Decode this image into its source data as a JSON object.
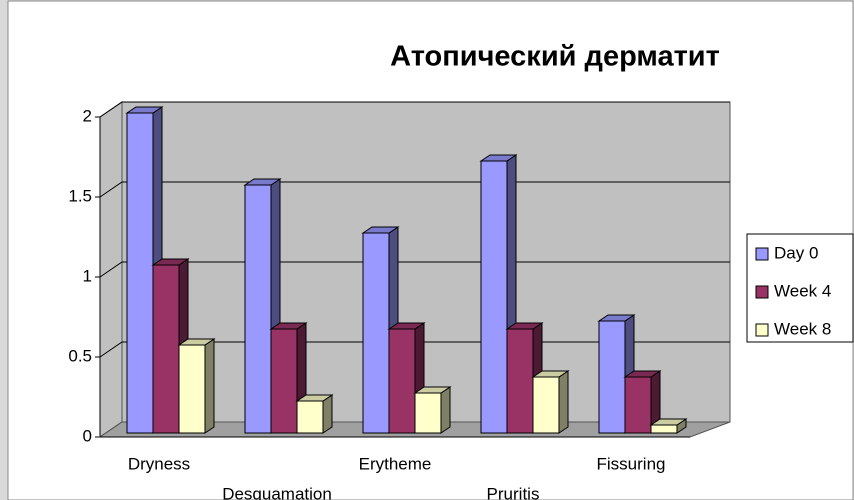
{
  "chart_data": {
    "type": "bar3d",
    "title": "Атопический дерматит",
    "categories": [
      "Dryness",
      "Desquamation",
      "Erytheme",
      "Pruritis",
      "Fissuring"
    ],
    "series": [
      {
        "name": "Day 0",
        "color": "#9999ff",
        "values": [
          2,
          1.55,
          1.25,
          1.7,
          0.7
        ]
      },
      {
        "name": "Week 4",
        "color": "#993366",
        "values": [
          1.05,
          0.65,
          0.65,
          0.65,
          0.35
        ]
      },
      {
        "name": "Week 8",
        "color": "#ffffcc",
        "values": [
          0.55,
          0.2,
          0.25,
          0.35,
          0.05
        ]
      }
    ],
    "ylim": [
      0,
      2
    ],
    "yticks": [
      0,
      0.5,
      1,
      1.5,
      2
    ],
    "grid": true,
    "legend": "right"
  }
}
